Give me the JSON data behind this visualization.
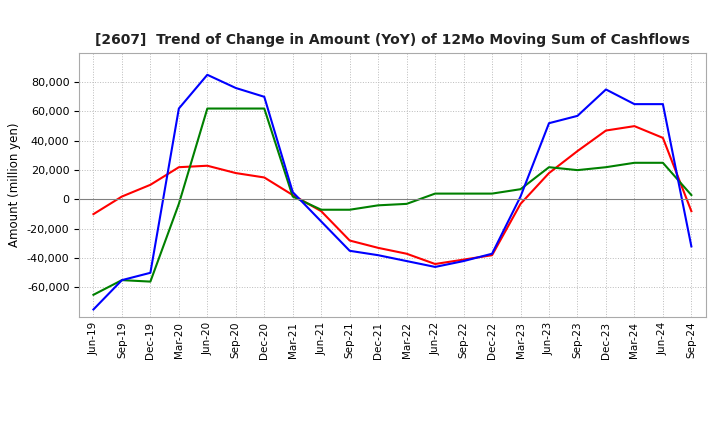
{
  "title": "[2607]  Trend of Change in Amount (YoY) of 12Mo Moving Sum of Cashflows",
  "ylabel": "Amount (million yen)",
  "xlabels": [
    "Jun-19",
    "Sep-19",
    "Dec-19",
    "Mar-20",
    "Jun-20",
    "Sep-20",
    "Dec-20",
    "Mar-21",
    "Jun-21",
    "Sep-21",
    "Dec-21",
    "Mar-22",
    "Jun-22",
    "Sep-22",
    "Dec-22",
    "Mar-23",
    "Jun-23",
    "Sep-23",
    "Dec-23",
    "Mar-24",
    "Jun-24",
    "Sep-24"
  ],
  "operating": [
    -10000,
    2000,
    10000,
    22000,
    23000,
    18000,
    15000,
    3000,
    -8000,
    -28000,
    -33000,
    -37000,
    -44000,
    -41000,
    -38000,
    -3000,
    18000,
    33000,
    47000,
    50000,
    42000,
    -8000
  ],
  "investing": [
    -65000,
    -55000,
    -56000,
    -3000,
    62000,
    62000,
    62000,
    2000,
    -7000,
    -7000,
    -4000,
    -3000,
    4000,
    4000,
    4000,
    7000,
    22000,
    20000,
    22000,
    25000,
    25000,
    3000
  ],
  "free": [
    -75000,
    -55000,
    -50000,
    62000,
    85000,
    76000,
    70000,
    5000,
    -15000,
    -35000,
    -38000,
    -42000,
    -46000,
    -42000,
    -37000,
    2000,
    52000,
    57000,
    75000,
    65000,
    65000,
    -32000
  ],
  "operating_color": "#ff0000",
  "investing_color": "#008000",
  "free_color": "#0000ff",
  "ylim": [
    -80000,
    100000
  ],
  "yticks": [
    -60000,
    -40000,
    -20000,
    0,
    20000,
    40000,
    60000,
    80000
  ],
  "background_color": "#ffffff",
  "grid_color": "#bbbbbb"
}
